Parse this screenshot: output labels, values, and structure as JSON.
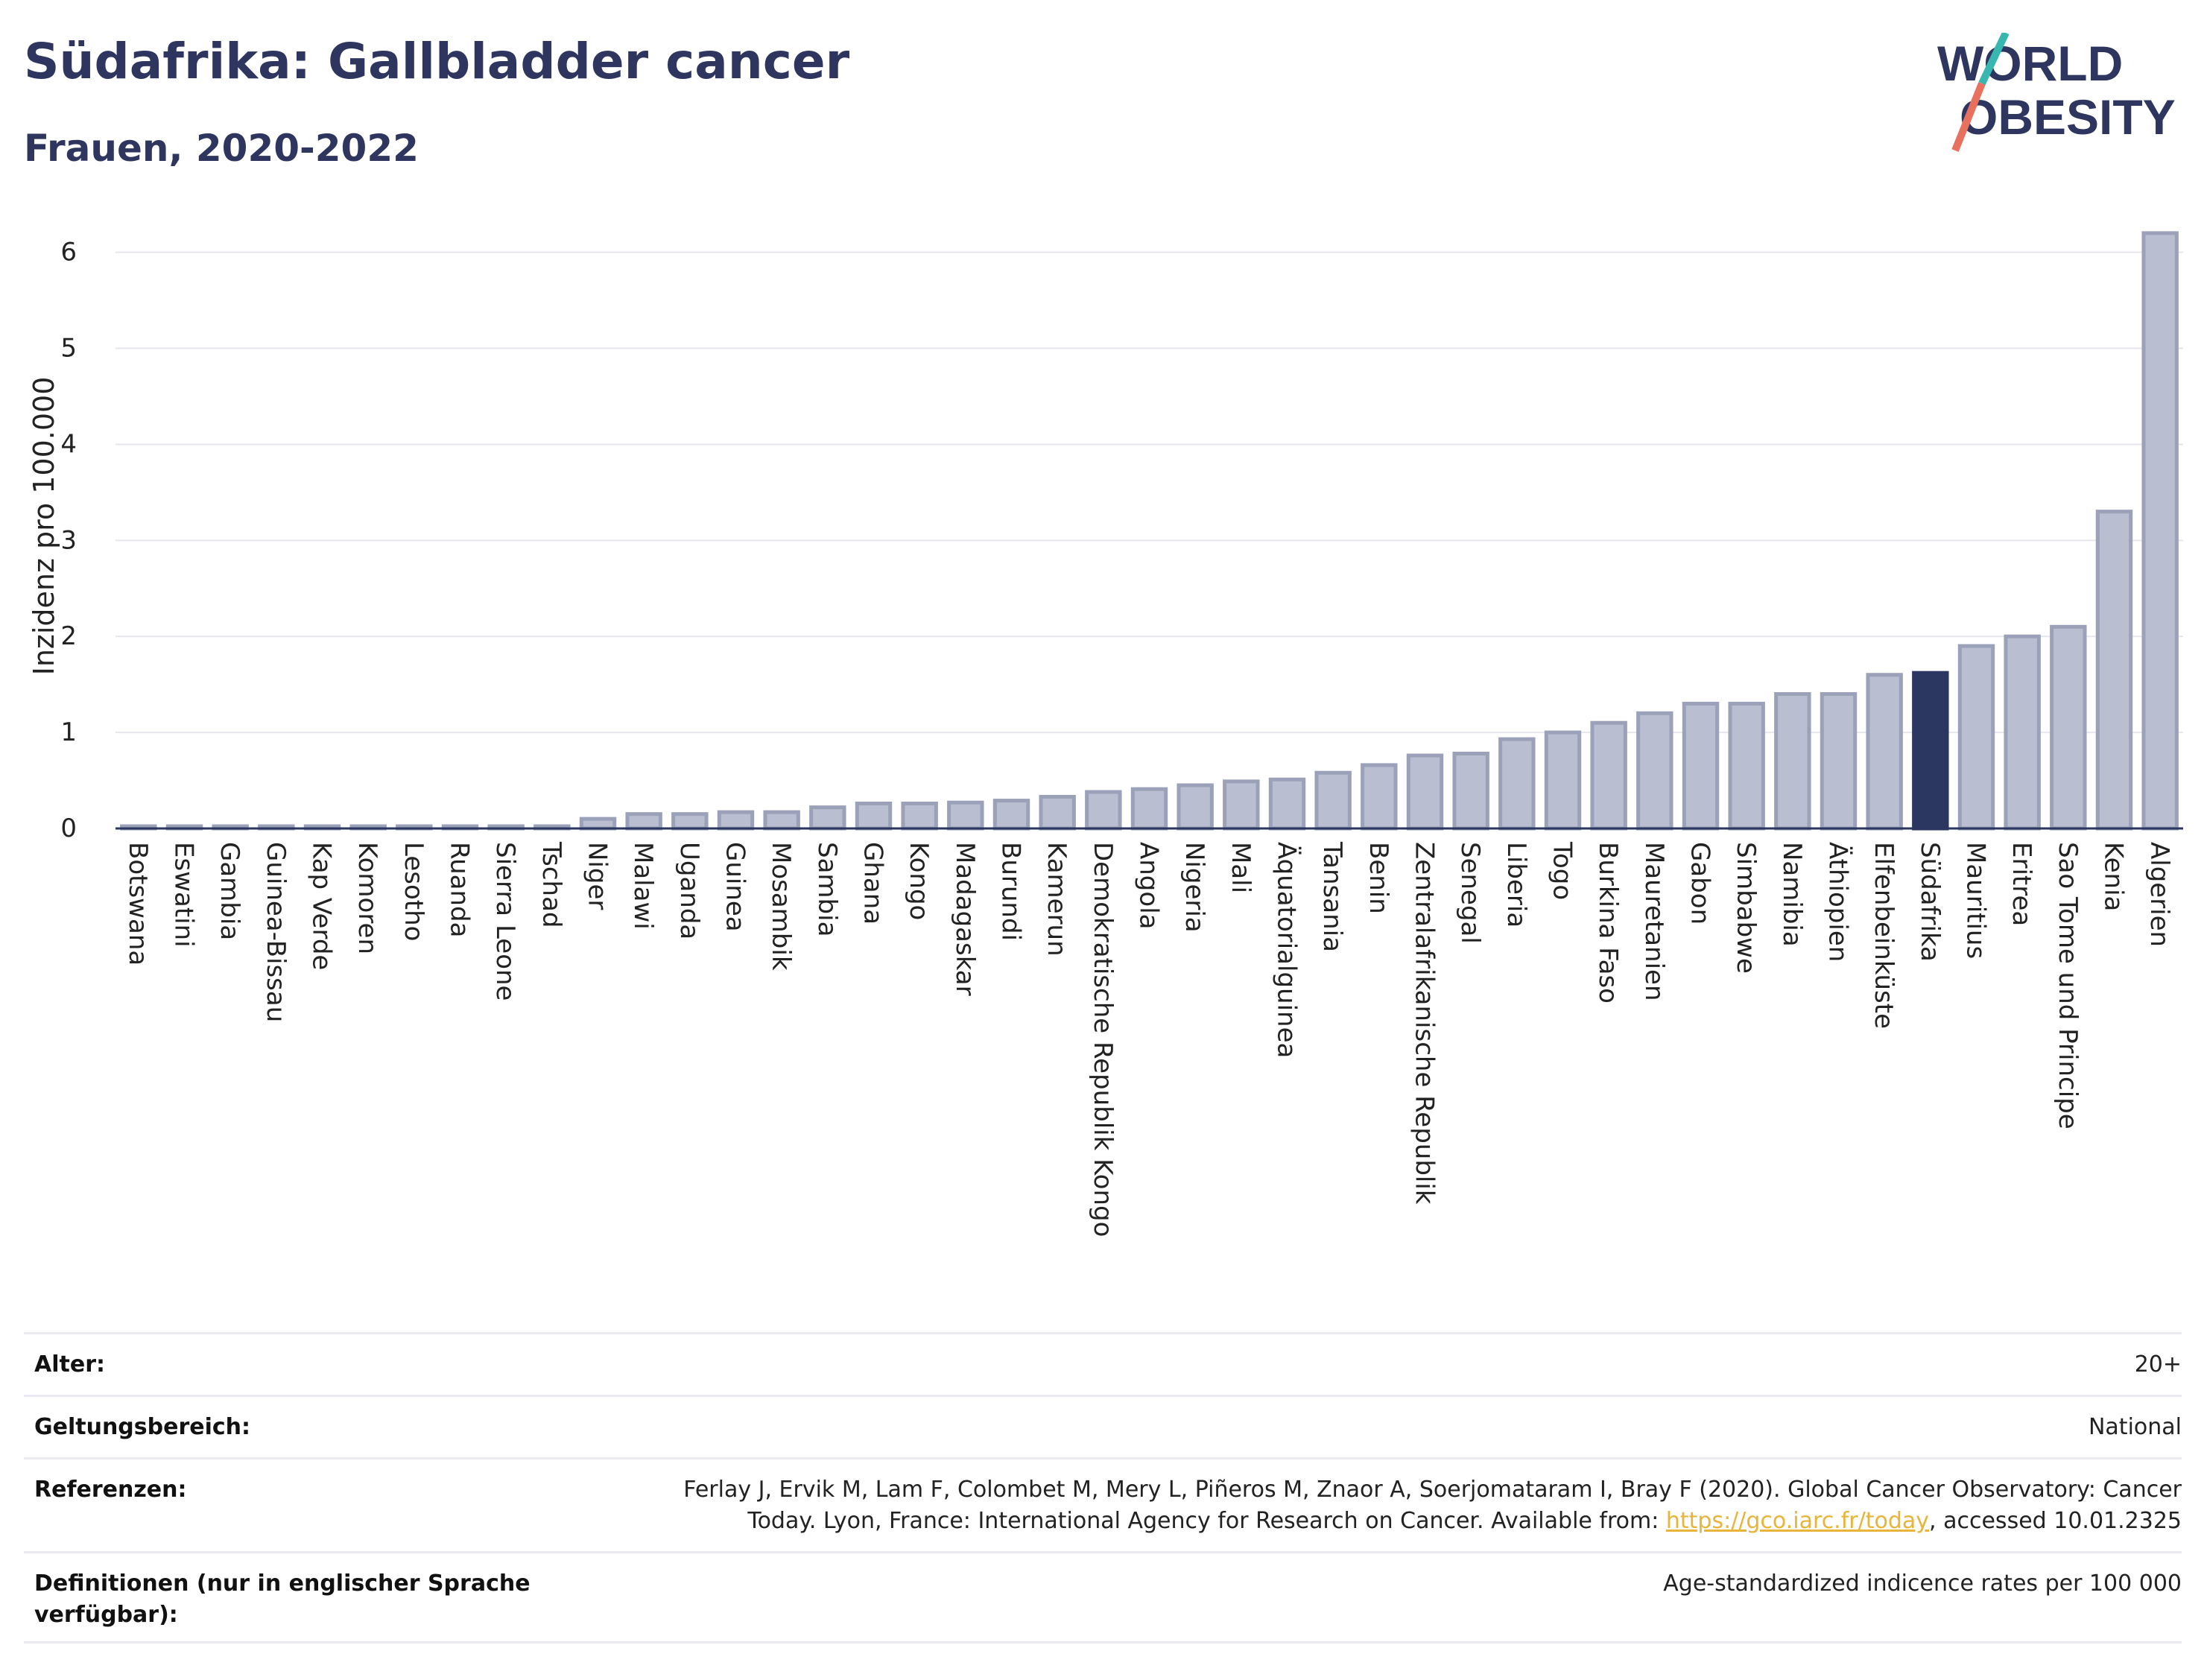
{
  "header": {
    "title": "Südafrika: Gallbladder cancer",
    "subtitle": "Frauen, 2020-2022"
  },
  "logo": {
    "line1": "WORLD",
    "line2": "OBESITY"
  },
  "colors": {
    "bar": "#b9bfd0",
    "bar_edge": "#9aa1b8",
    "highlight": "#2b3661",
    "text": "#2e3660",
    "link": "#e8b43a"
  },
  "chart_data": {
    "type": "bar",
    "ylabel": "Inzidenz pro 100.000",
    "ylim": [
      0,
      6.3
    ],
    "yticks": [
      0,
      1,
      2,
      3,
      4,
      5,
      6
    ],
    "grid": true,
    "highlight": "Südafrika",
    "categories": [
      "Botswana",
      "Eswatini",
      "Gambia",
      "Guinea-Bissau",
      "Kap Verde",
      "Komoren",
      "Lesotho",
      "Ruanda",
      "Sierra Leone",
      "Tschad",
      "Niger",
      "Malawi",
      "Uganda",
      "Guinea",
      "Mosambik",
      "Sambia",
      "Ghana",
      "Kongo",
      "Madagaskar",
      "Burundi",
      "Kamerun",
      "Demokratische Republik Kongo",
      "Angola",
      "Nigeria",
      "Mali",
      "Äquatorialguinea",
      "Tansania",
      "Benin",
      "Zentralafrikanische Republik",
      "Senegal",
      "Liberia",
      "Togo",
      "Burkina Faso",
      "Mauretanien",
      "Gabon",
      "Simbabwe",
      "Namibia",
      "Äthiopien",
      "Elfenbeinküste",
      "Südafrika",
      "Mauritius",
      "Eritrea",
      "Sao Tome und Principe",
      "Kenia",
      "Algerien"
    ],
    "values": [
      0.01,
      0.01,
      0.01,
      0.01,
      0.01,
      0.01,
      0.01,
      0.01,
      0.01,
      0.01,
      0.1,
      0.15,
      0.15,
      0.17,
      0.17,
      0.22,
      0.26,
      0.26,
      0.27,
      0.29,
      0.33,
      0.38,
      0.41,
      0.45,
      0.49,
      0.51,
      0.58,
      0.66,
      0.76,
      0.78,
      0.93,
      1.0,
      1.1,
      1.2,
      1.3,
      1.3,
      1.4,
      1.4,
      1.6,
      1.62,
      1.9,
      2.0,
      2.1,
      3.3,
      6.2
    ]
  },
  "info": {
    "age_label": "Alter:",
    "age_value": "20+",
    "scope_label": "Geltungsbereich:",
    "scope_value": "National",
    "ref_label": "Referenzen:",
    "ref_line1": "Ferlay J, Ervik M, Lam F, Colombet M, Mery L, Piñeros M, Znaor A, Soerjomataram I, Bray F (2020). Global Cancer Observatory: Cancer",
    "ref_line2a": "Today. Lyon, France: International Agency for Research on Cancer. Available from: ",
    "ref_link": "https://gco.iarc.fr/today",
    "ref_line2b": ", accessed 10.01.2325",
    "def_label": "Definitionen (nur in englischer Sprache verfügbar):",
    "def_value": "Age-standardized indicence rates per 100 000"
  }
}
